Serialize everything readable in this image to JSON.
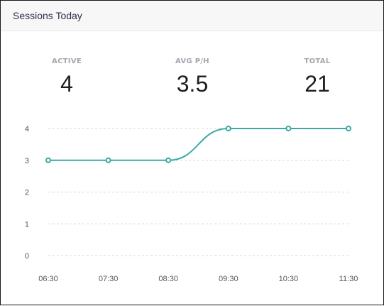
{
  "card": {
    "title": "Sessions Today"
  },
  "stats": [
    {
      "label": "ACTIVE",
      "value": "4"
    },
    {
      "label": "AVG P/H",
      "value": "3.5"
    },
    {
      "label": "TOTAL",
      "value": "21"
    }
  ],
  "colors": {
    "series": "#3aa9a3",
    "grid": "#d5d7db"
  },
  "chart_data": {
    "type": "line",
    "categories": [
      "06:30",
      "07:30",
      "08:30",
      "09:30",
      "10:30",
      "11:30"
    ],
    "series": [
      {
        "values": [
          3,
          3,
          3,
          4,
          4,
          4
        ]
      }
    ],
    "yticks": [
      0,
      1,
      2,
      3,
      4
    ],
    "ylim": [
      0,
      4
    ],
    "grid": true,
    "smooth": true,
    "title": "",
    "xlabel": "",
    "ylabel": ""
  }
}
